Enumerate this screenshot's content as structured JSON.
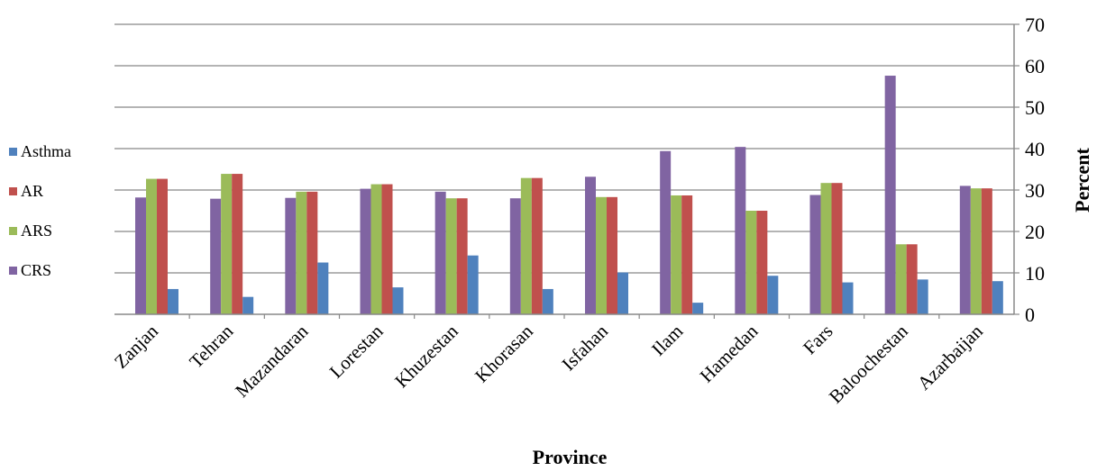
{
  "chart_data": {
    "type": "bar",
    "categories": [
      "Zanjan",
      "Tehran",
      "Mazandaran",
      "Lorestan",
      "Khuzestan",
      "Khorasan",
      "Isfahan",
      "Ilam",
      "Hamedan",
      "Fars",
      "Baloochestan",
      "Azarbaijan"
    ],
    "series": [
      {
        "name": "CRS",
        "color": "#8064A2",
        "values": [
          28.2,
          27.9,
          28.1,
          30.3,
          29.6,
          28.0,
          33.2,
          39.4,
          40.4,
          28.8,
          57.6,
          31.0
        ]
      },
      {
        "name": "ARS",
        "color": "#9BBB59",
        "values": [
          32.7,
          33.9,
          29.6,
          31.4,
          28.0,
          32.9,
          28.3,
          28.7,
          25.0,
          31.7,
          16.9,
          30.4
        ]
      },
      {
        "name": "AR",
        "color": "#C0504D",
        "values": [
          32.7,
          33.9,
          29.6,
          31.4,
          28.0,
          32.9,
          28.3,
          28.7,
          25.0,
          31.7,
          16.9,
          30.4
        ]
      },
      {
        "name": "Asthma",
        "color": "#4F81BD",
        "values": [
          6.1,
          4.2,
          12.5,
          6.5,
          14.2,
          6.1,
          10.1,
          2.8,
          9.3,
          7.7,
          8.4,
          8.0
        ]
      }
    ],
    "legend_order": [
      "Asthma",
      "AR",
      "ARS",
      "CRS"
    ],
    "legend_position": "left",
    "xlabel": "Province",
    "ylabel": "Percent",
    "y_axis_side": "right",
    "ylim": [
      0,
      70
    ],
    "yticks": [
      0,
      10,
      20,
      30,
      40,
      50,
      60,
      70
    ],
    "grid": true
  }
}
